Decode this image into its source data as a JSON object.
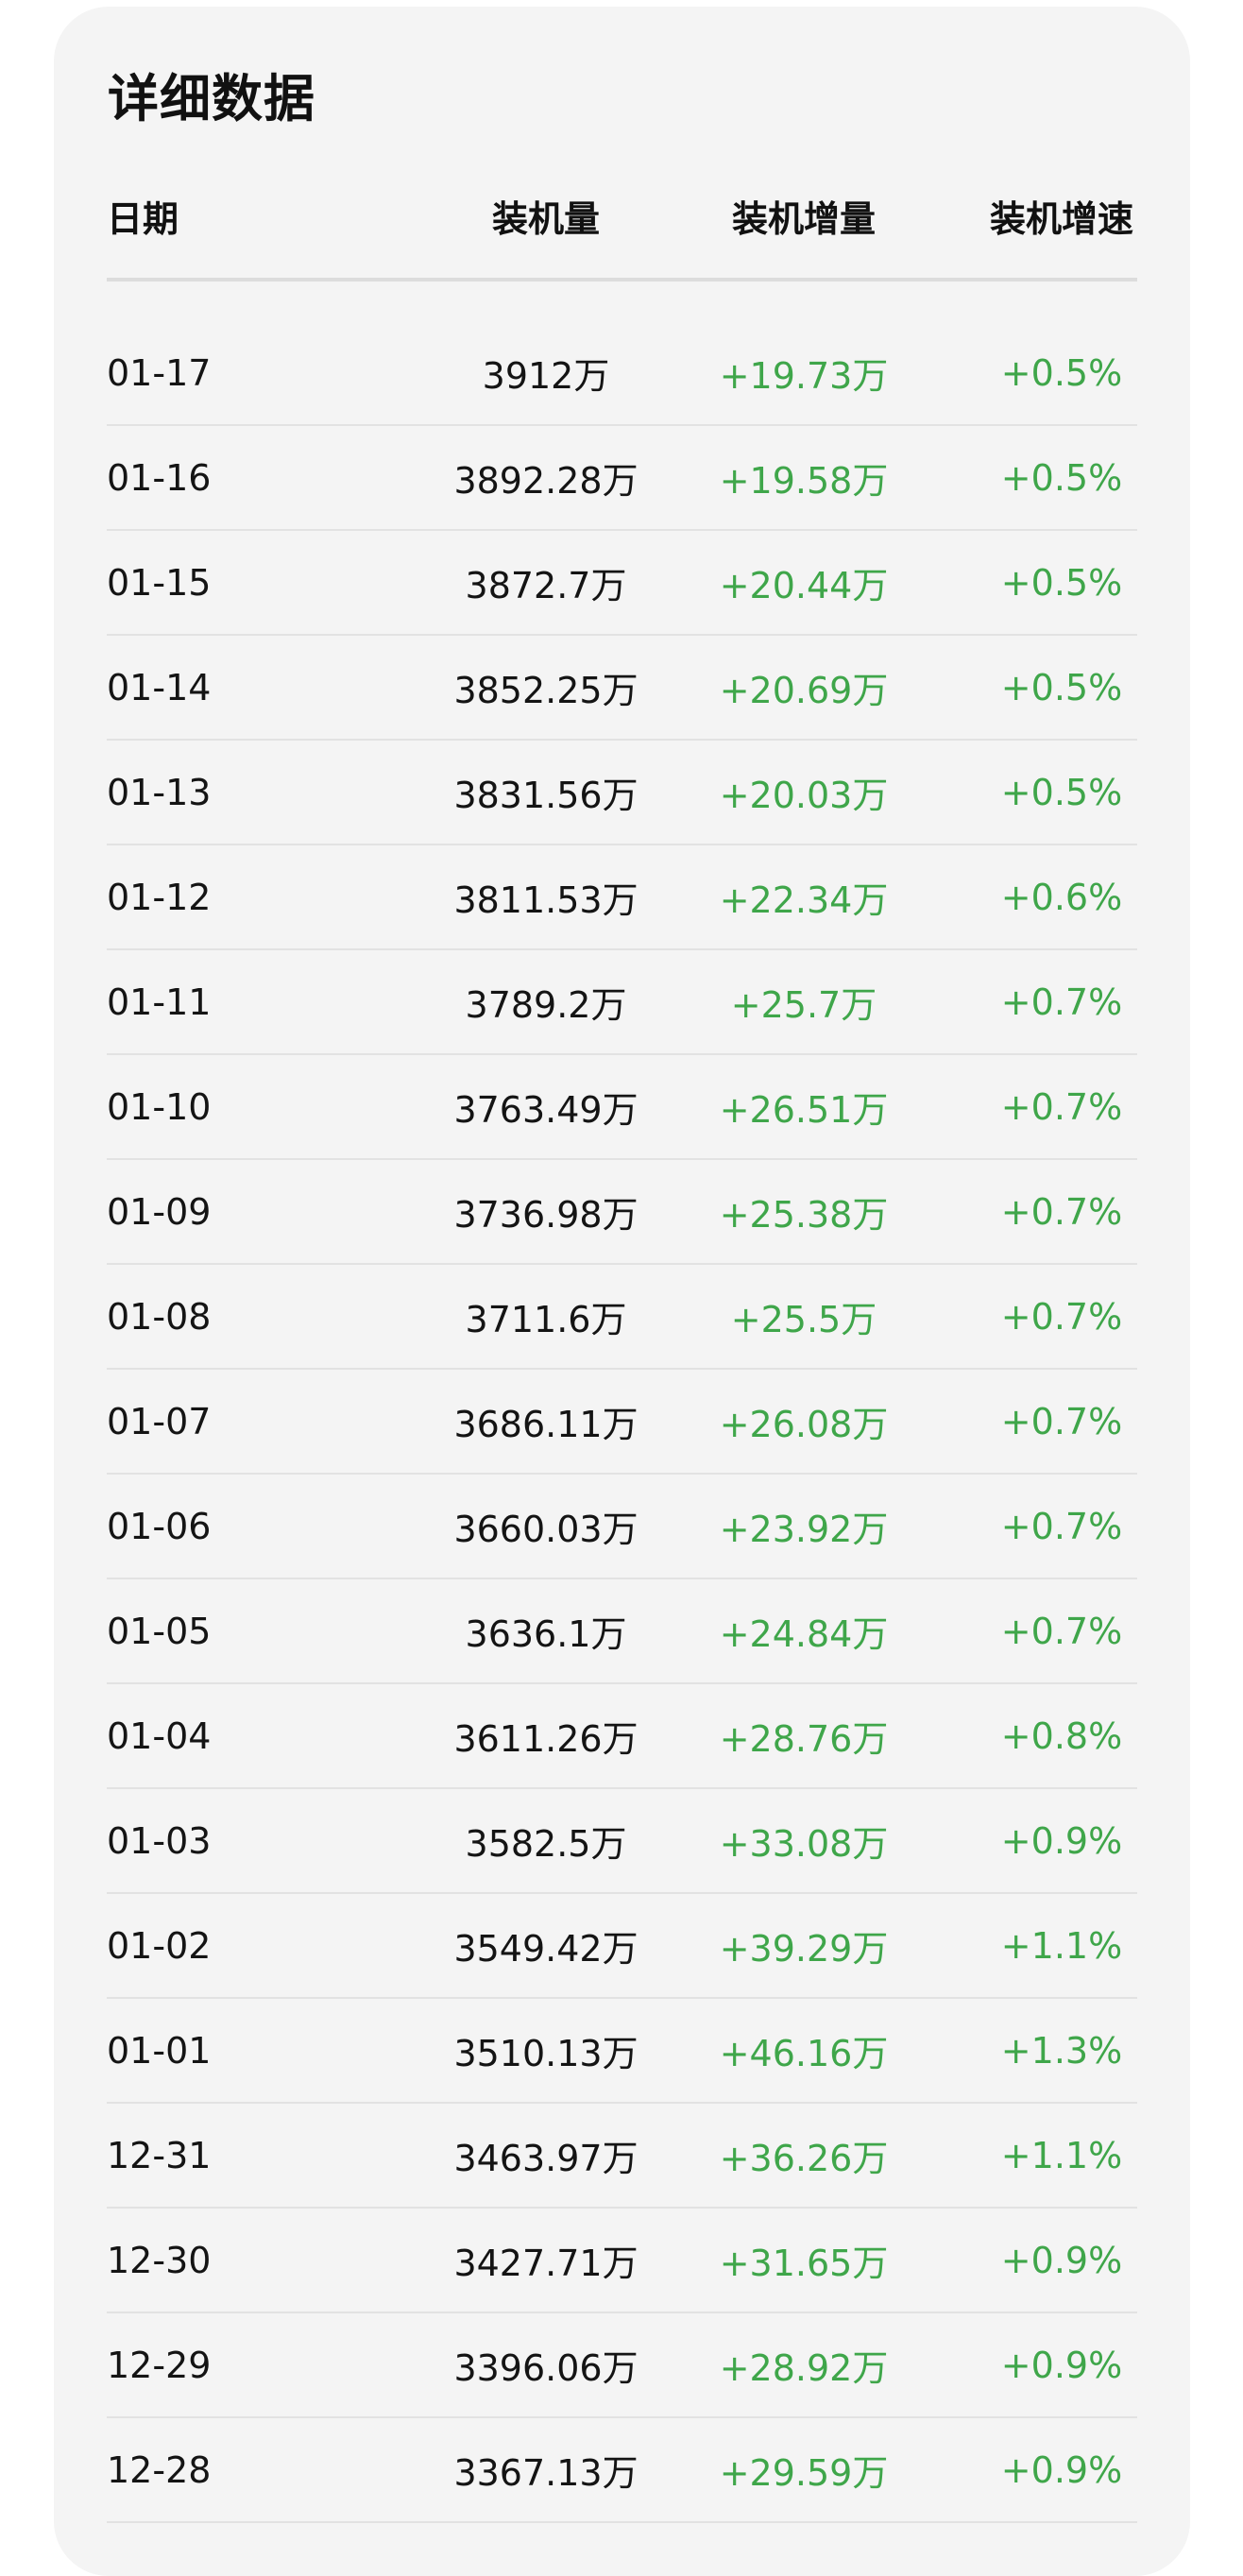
{
  "section_title": "详细数据",
  "columns": {
    "date": "日期",
    "total": "装机量",
    "increase": "装机增量",
    "rate": "装机增速"
  },
  "colors": {
    "positive": "#3fa64a",
    "card_background": "#f4f4f4"
  },
  "rows": [
    {
      "date": "01-17",
      "total": "3912万",
      "increase": "+19.73万",
      "rate": "+0.5%"
    },
    {
      "date": "01-16",
      "total": "3892.28万",
      "increase": "+19.58万",
      "rate": "+0.5%"
    },
    {
      "date": "01-15",
      "total": "3872.7万",
      "increase": "+20.44万",
      "rate": "+0.5%"
    },
    {
      "date": "01-14",
      "total": "3852.25万",
      "increase": "+20.69万",
      "rate": "+0.5%"
    },
    {
      "date": "01-13",
      "total": "3831.56万",
      "increase": "+20.03万",
      "rate": "+0.5%"
    },
    {
      "date": "01-12",
      "total": "3811.53万",
      "increase": "+22.34万",
      "rate": "+0.6%"
    },
    {
      "date": "01-11",
      "total": "3789.2万",
      "increase": "+25.7万",
      "rate": "+0.7%"
    },
    {
      "date": "01-10",
      "total": "3763.49万",
      "increase": "+26.51万",
      "rate": "+0.7%"
    },
    {
      "date": "01-09",
      "total": "3736.98万",
      "increase": "+25.38万",
      "rate": "+0.7%"
    },
    {
      "date": "01-08",
      "total": "3711.6万",
      "increase": "+25.5万",
      "rate": "+0.7%"
    },
    {
      "date": "01-07",
      "total": "3686.11万",
      "increase": "+26.08万",
      "rate": "+0.7%"
    },
    {
      "date": "01-06",
      "total": "3660.03万",
      "increase": "+23.92万",
      "rate": "+0.7%"
    },
    {
      "date": "01-05",
      "total": "3636.1万",
      "increase": "+24.84万",
      "rate": "+0.7%"
    },
    {
      "date": "01-04",
      "total": "3611.26万",
      "increase": "+28.76万",
      "rate": "+0.8%"
    },
    {
      "date": "01-03",
      "total": "3582.5万",
      "increase": "+33.08万",
      "rate": "+0.9%"
    },
    {
      "date": "01-02",
      "total": "3549.42万",
      "increase": "+39.29万",
      "rate": "+1.1%"
    },
    {
      "date": "01-01",
      "total": "3510.13万",
      "increase": "+46.16万",
      "rate": "+1.3%"
    },
    {
      "date": "12-31",
      "total": "3463.97万",
      "increase": "+36.26万",
      "rate": "+1.1%"
    },
    {
      "date": "12-30",
      "total": "3427.71万",
      "increase": "+31.65万",
      "rate": "+0.9%"
    },
    {
      "date": "12-29",
      "total": "3396.06万",
      "increase": "+28.92万",
      "rate": "+0.9%"
    },
    {
      "date": "12-28",
      "total": "3367.13万",
      "increase": "+29.59万",
      "rate": "+0.9%"
    }
  ]
}
